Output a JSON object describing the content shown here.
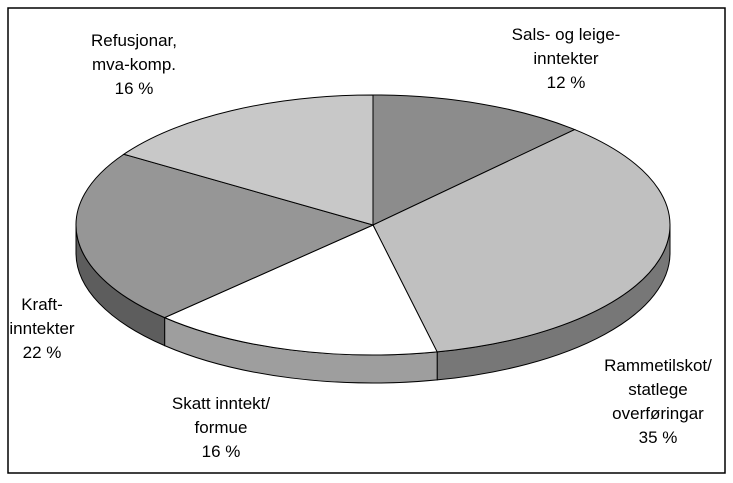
{
  "chart_data": {
    "type": "pie",
    "categories": [
      [
        "Sals- og leige-",
        "inntekter"
      ],
      [
        "Rammetilskot/",
        "statlege",
        "overføringar"
      ],
      [
        "Skatt inntekt/",
        "formue"
      ],
      [
        "Kraft-",
        "inntekter"
      ],
      [
        "Refusjonar,",
        "mva-komp."
      ]
    ],
    "values": [
      12,
      35,
      16,
      22,
      16
    ],
    "value_labels": [
      "12 %",
      "35 %",
      "16 %",
      "22 %",
      "16 %"
    ],
    "colors": [
      "#8c8c8c",
      "#c0c0c0",
      "#ffffff",
      "#969696",
      "#c8c8c8"
    ]
  }
}
